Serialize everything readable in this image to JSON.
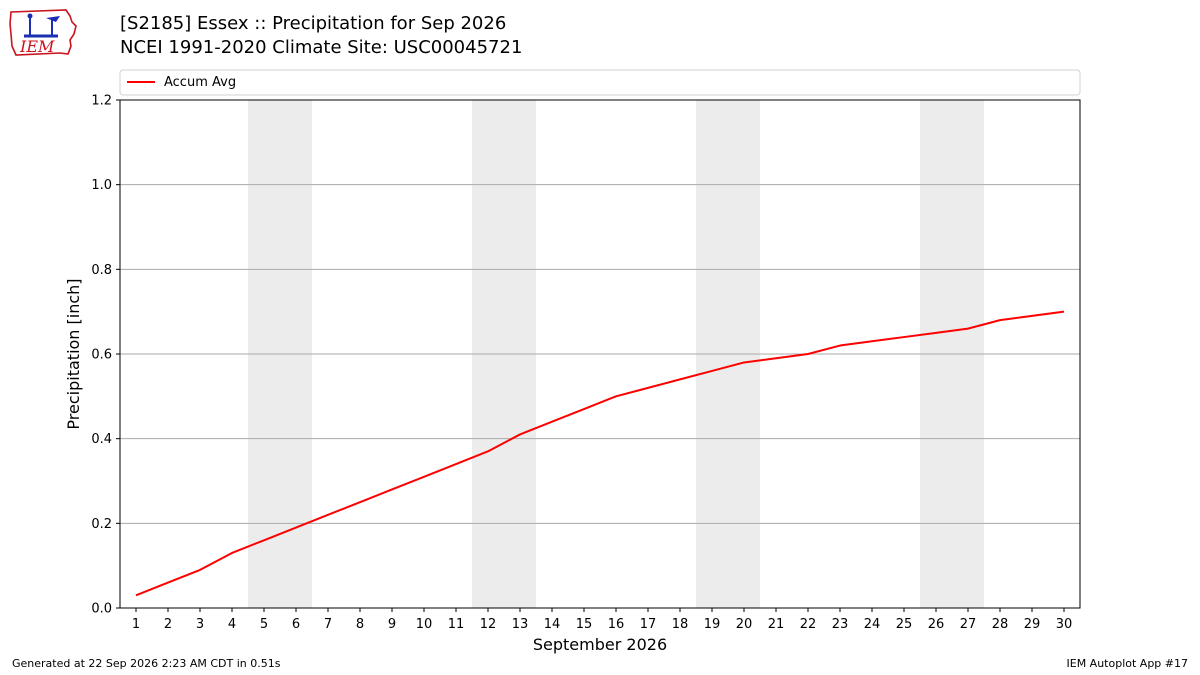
{
  "header": {
    "title_line1": "[S2185] Essex :: Precipitation for Sep 2026",
    "title_line2": "NCEI 1991-2020 Climate Site: USC00045721",
    "logo_text": "IEM"
  },
  "footer": {
    "generated": "Generated at 22 Sep 2026 2:23 AM CDT in 0.51s",
    "app": "IEM Autoplot App #17"
  },
  "colors": {
    "accum_line": "#ff0000",
    "weekend_shade": "#ececec",
    "grid": "#aaaaaa"
  },
  "chart_data": {
    "type": "line",
    "title": "",
    "xlabel": "September 2026",
    "ylabel": "Precipitation [inch]",
    "xlim": [
      0.5,
      30.5
    ],
    "ylim": [
      0,
      1.2
    ],
    "yticks": [
      0.0,
      0.2,
      0.4,
      0.6,
      0.8,
      1.0,
      1.2
    ],
    "ytick_labels": [
      "0.0",
      "0.2",
      "0.4",
      "0.6",
      "0.8",
      "1.0",
      "1.2"
    ],
    "x": [
      1,
      2,
      3,
      4,
      5,
      6,
      7,
      8,
      9,
      10,
      11,
      12,
      13,
      14,
      15,
      16,
      17,
      18,
      19,
      20,
      21,
      22,
      23,
      24,
      25,
      26,
      27,
      28,
      29,
      30
    ],
    "xtick_labels": [
      "1",
      "2",
      "3",
      "4",
      "5",
      "6",
      "7",
      "8",
      "9",
      "10",
      "11",
      "12",
      "13",
      "14",
      "15",
      "16",
      "17",
      "18",
      "19",
      "20",
      "21",
      "22",
      "23",
      "24",
      "25",
      "26",
      "27",
      "28",
      "29",
      "30"
    ],
    "shaded_days": [
      [
        5,
        6
      ],
      [
        12,
        13
      ],
      [
        19,
        20
      ],
      [
        26,
        27
      ]
    ],
    "grid": "horizontal",
    "legend_position": "top, spanning width",
    "series": [
      {
        "name": "Accum Avg",
        "color": "#ff0000",
        "values": [
          0.03,
          0.06,
          0.09,
          0.13,
          0.16,
          0.19,
          0.22,
          0.25,
          0.28,
          0.31,
          0.34,
          0.37,
          0.41,
          0.44,
          0.47,
          0.5,
          0.52,
          0.54,
          0.56,
          0.58,
          0.59,
          0.6,
          0.62,
          0.63,
          0.64,
          0.65,
          0.66,
          0.68,
          0.69,
          0.7
        ]
      }
    ]
  }
}
